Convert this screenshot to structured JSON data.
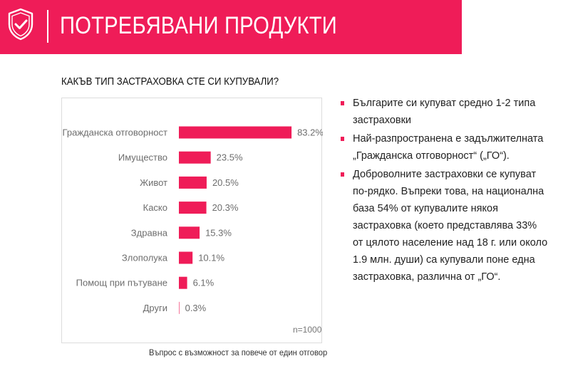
{
  "header": {
    "title": "ПОТРЕБЯВАНИ ПРОДУКТИ",
    "accent_color": "#ef1c58",
    "icon": "shield-check-icon"
  },
  "question": "КАКЪВ ТИП ЗАСТРАХОВКА СТЕ СИ КУПУВАЛИ?",
  "chart_data": {
    "type": "bar",
    "orientation": "horizontal",
    "title": "КАКЪВ ТИП ЗАСТРАХОВКА СТЕ СИ КУПУВАЛИ?",
    "categories": [
      "Гражданска отговорност",
      "Имущество",
      "Живот",
      "Каско",
      "Здравна",
      "Злополука",
      "Помощ при пътуване",
      "Други"
    ],
    "values": [
      83.2,
      23.5,
      20.5,
      20.3,
      15.3,
      10.1,
      6.1,
      0.3
    ],
    "value_labels": [
      "83.2%",
      "23.5%",
      "20.5%",
      "20.3%",
      "15.3%",
      "10.1%",
      "6.1%",
      "0.3%"
    ],
    "xlim": [
      0,
      100
    ],
    "grid": false,
    "bar_color": "#ef1c58",
    "note": "n=1000"
  },
  "footnote": "Въпрос с възможност за повече от един отговор",
  "bullets": [
    "Българите си купуват средно 1-2 типа застраховки",
    "Най-разпространена е задължителната „Гражданска отговорност“ („ГО“).",
    "Доброволните застраховки се купуват по-рядко. Въпреки това, на национална база 54% от купувалите някоя застраховка (което представлява 33% от цялото население над 18 г. или около 1.9 млн. души) са купували поне една застраховка, различна от „ГО“."
  ]
}
